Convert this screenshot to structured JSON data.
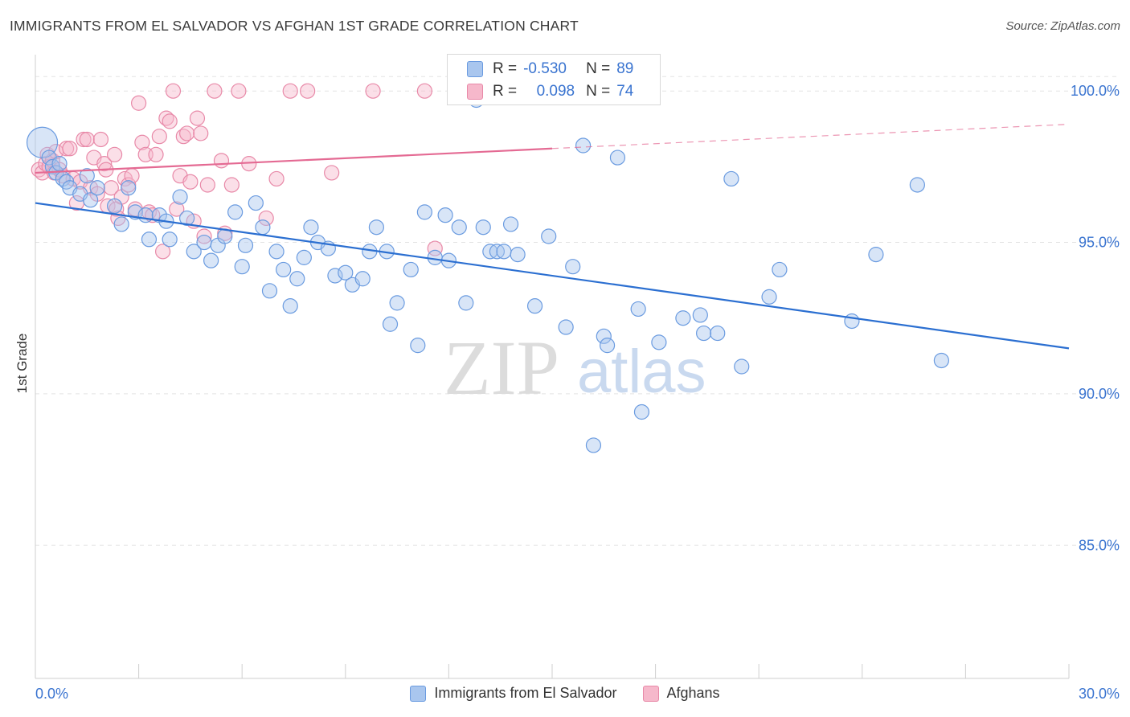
{
  "title": "IMMIGRANTS FROM EL SALVADOR VS AFGHAN 1ST GRADE CORRELATION CHART",
  "source": "Source: ZipAtlas.com",
  "watermark": {
    "zip": "ZIP",
    "atlas": "atlas"
  },
  "legend_stats": [
    {
      "r_label": "R =",
      "r_value": "-0.530",
      "n_label": "N =",
      "n_value": "89"
    },
    {
      "r_label": "R =",
      "r_value": "0.098",
      "n_label": "N =",
      "n_value": "74"
    }
  ],
  "colors": {
    "blue_fill": "#a9c6ee",
    "blue_stroke": "#6a9be0",
    "blue_line": "#2b6fd1",
    "pink_fill": "#f6b8cb",
    "pink_stroke": "#e889a8",
    "pink_line": "#e46a93",
    "tick_label": "#3a74d0",
    "grid": "#e3e3e3"
  },
  "chart_data": {
    "type": "scatter",
    "title": "IMMIGRANTS FROM EL SALVADOR VS AFGHAN 1ST GRADE CORRELATION CHART",
    "xlabel": "",
    "ylabel": "1st Grade",
    "xlim": [
      0.0,
      30.0
    ],
    "ylim": [
      80.6,
      101.2
    ],
    "x_tick_labels": [
      "0.0%",
      "30.0%"
    ],
    "y_ticks": [
      85.0,
      90.0,
      95.0,
      100.0
    ],
    "y_tick_labels": [
      "85.0%",
      "90.0%",
      "95.0%",
      "100.0%"
    ],
    "grid": "horizontal dashed",
    "legend_placement": "bottom-center",
    "series": [
      {
        "name": "Immigrants from El Salvador",
        "trend": {
          "x": [
            0.0,
            30.0
          ],
          "y": [
            96.3,
            91.5
          ],
          "style": "solid"
        },
        "points": [
          [
            0.2,
            98.3
          ],
          [
            0.4,
            97.8
          ],
          [
            0.5,
            97.5
          ],
          [
            0.6,
            97.3
          ],
          [
            0.7,
            97.6
          ],
          [
            0.8,
            97.1
          ],
          [
            0.9,
            97.0
          ],
          [
            1.0,
            96.8
          ],
          [
            1.3,
            96.6
          ],
          [
            1.5,
            97.2
          ],
          [
            1.6,
            96.4
          ],
          [
            1.8,
            96.8
          ],
          [
            2.3,
            96.2
          ],
          [
            2.5,
            95.6
          ],
          [
            2.7,
            96.8
          ],
          [
            2.9,
            96.0
          ],
          [
            3.2,
            95.9
          ],
          [
            3.3,
            95.1
          ],
          [
            3.6,
            95.9
          ],
          [
            3.8,
            95.7
          ],
          [
            3.9,
            95.1
          ],
          [
            4.2,
            96.5
          ],
          [
            4.4,
            95.8
          ],
          [
            4.6,
            94.7
          ],
          [
            4.9,
            95.0
          ],
          [
            5.1,
            94.4
          ],
          [
            5.3,
            94.9
          ],
          [
            5.5,
            95.2
          ],
          [
            5.8,
            96.0
          ],
          [
            6.0,
            94.2
          ],
          [
            6.1,
            94.9
          ],
          [
            6.4,
            96.3
          ],
          [
            6.6,
            95.5
          ],
          [
            6.8,
            93.4
          ],
          [
            7.0,
            94.7
          ],
          [
            7.2,
            94.1
          ],
          [
            7.4,
            92.9
          ],
          [
            7.6,
            93.8
          ],
          [
            7.8,
            94.5
          ],
          [
            8.0,
            95.5
          ],
          [
            8.2,
            95.0
          ],
          [
            8.5,
            94.8
          ],
          [
            8.7,
            93.9
          ],
          [
            9.0,
            94.0
          ],
          [
            9.2,
            93.6
          ],
          [
            9.5,
            93.8
          ],
          [
            9.7,
            94.7
          ],
          [
            9.9,
            95.5
          ],
          [
            10.2,
            94.7
          ],
          [
            10.3,
            92.3
          ],
          [
            10.5,
            93.0
          ],
          [
            10.9,
            94.1
          ],
          [
            11.1,
            91.6
          ],
          [
            11.3,
            96.0
          ],
          [
            11.6,
            94.5
          ],
          [
            11.9,
            95.9
          ],
          [
            12.0,
            94.4
          ],
          [
            12.3,
            95.5
          ],
          [
            12.5,
            93.0
          ],
          [
            12.8,
            99.7
          ],
          [
            13.0,
            95.5
          ],
          [
            13.2,
            94.7
          ],
          [
            13.4,
            94.7
          ],
          [
            13.6,
            94.7
          ],
          [
            13.8,
            95.6
          ],
          [
            14.0,
            94.6
          ],
          [
            14.5,
            92.9
          ],
          [
            14.9,
            95.2
          ],
          [
            15.4,
            92.2
          ],
          [
            15.6,
            94.2
          ],
          [
            15.9,
            98.2
          ],
          [
            16.2,
            88.3
          ],
          [
            16.5,
            91.9
          ],
          [
            16.6,
            91.6
          ],
          [
            16.9,
            97.8
          ],
          [
            17.5,
            92.8
          ],
          [
            17.6,
            89.4
          ],
          [
            18.1,
            91.7
          ],
          [
            18.8,
            92.5
          ],
          [
            19.3,
            92.6
          ],
          [
            19.4,
            92.0
          ],
          [
            19.8,
            92.0
          ],
          [
            20.2,
            97.1
          ],
          [
            20.5,
            90.9
          ],
          [
            21.3,
            93.2
          ],
          [
            21.6,
            94.1
          ],
          [
            23.7,
            92.4
          ],
          [
            24.4,
            94.6
          ],
          [
            25.6,
            96.9
          ],
          [
            26.3,
            91.1
          ]
        ]
      },
      {
        "name": "Afghans",
        "trend": {
          "x": [
            0.0,
            15.0,
            30.0
          ],
          "y": [
            97.3,
            98.1,
            98.9
          ],
          "style": "solid to 15.0, dashed after"
        },
        "points": [
          [
            0.1,
            97.4
          ],
          [
            0.2,
            97.3
          ],
          [
            0.3,
            97.6
          ],
          [
            0.35,
            97.9
          ],
          [
            0.4,
            97.5
          ],
          [
            0.5,
            97.7
          ],
          [
            0.55,
            97.3
          ],
          [
            0.6,
            98.0
          ],
          [
            0.7,
            97.4
          ],
          [
            0.8,
            97.2
          ],
          [
            0.9,
            98.1
          ],
          [
            1.0,
            98.1
          ],
          [
            1.1,
            97.1
          ],
          [
            1.2,
            96.3
          ],
          [
            1.3,
            97.0
          ],
          [
            1.4,
            98.4
          ],
          [
            1.5,
            98.4
          ],
          [
            1.6,
            96.8
          ],
          [
            1.7,
            97.8
          ],
          [
            1.8,
            96.6
          ],
          [
            1.9,
            98.4
          ],
          [
            2.0,
            97.6
          ],
          [
            2.05,
            97.4
          ],
          [
            2.1,
            96.2
          ],
          [
            2.2,
            96.8
          ],
          [
            2.3,
            97.9
          ],
          [
            2.35,
            96.1
          ],
          [
            2.4,
            95.8
          ],
          [
            2.5,
            96.5
          ],
          [
            2.6,
            97.1
          ],
          [
            2.7,
            96.9
          ],
          [
            2.8,
            97.2
          ],
          [
            2.9,
            96.1
          ],
          [
            3.0,
            99.6
          ],
          [
            3.1,
            98.3
          ],
          [
            3.2,
            97.9
          ],
          [
            3.3,
            96.0
          ],
          [
            3.4,
            95.9
          ],
          [
            3.5,
            97.9
          ],
          [
            3.6,
            98.5
          ],
          [
            3.7,
            94.7
          ],
          [
            3.8,
            99.1
          ],
          [
            3.9,
            99.0
          ],
          [
            4.0,
            100.0
          ],
          [
            4.1,
            96.1
          ],
          [
            4.2,
            97.2
          ],
          [
            4.3,
            98.5
          ],
          [
            4.4,
            98.6
          ],
          [
            4.5,
            97.0
          ],
          [
            4.6,
            95.7
          ],
          [
            4.7,
            99.1
          ],
          [
            4.8,
            98.6
          ],
          [
            4.9,
            95.2
          ],
          [
            5.0,
            96.9
          ],
          [
            5.2,
            100.0
          ],
          [
            5.4,
            97.7
          ],
          [
            5.5,
            95.3
          ],
          [
            5.7,
            96.9
          ],
          [
            5.9,
            100.0
          ],
          [
            6.2,
            97.6
          ],
          [
            6.7,
            95.8
          ],
          [
            7.0,
            97.1
          ],
          [
            7.4,
            100.0
          ],
          [
            7.9,
            100.0
          ],
          [
            8.6,
            97.3
          ],
          [
            9.8,
            100.0
          ],
          [
            11.3,
            100.0
          ],
          [
            11.6,
            94.8
          ]
        ]
      }
    ]
  }
}
